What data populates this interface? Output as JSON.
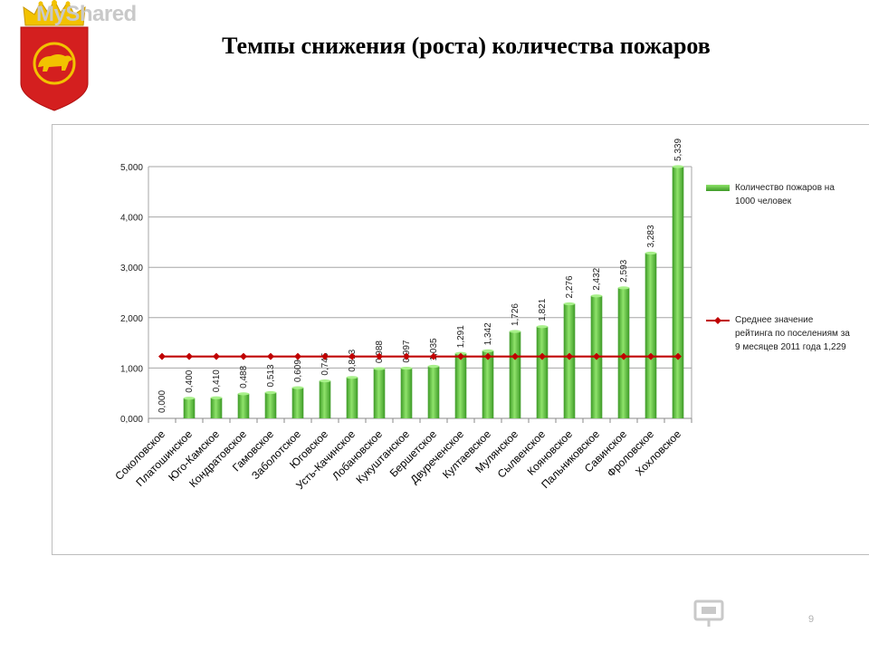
{
  "title": "Темпы снижения (роста) количества пожаров",
  "page_number": "9",
  "watermark": "MyShared",
  "colors": {
    "bar": "#5ec43f",
    "line": "#c00000",
    "grid": "#a6a6a6",
    "emblem_red": "#d41f1f",
    "emblem_gold": "#f2c200"
  },
  "icons": {
    "emblem": "coat-of-arms-bear-icon",
    "watermark": "presentation-board-icon"
  },
  "chart_data": {
    "type": "bar",
    "categories": [
      "Соколовское",
      "Платошинское",
      "Юго-Камское",
      "Кондратовское",
      "Гамовское",
      "Заболотское",
      "Юговское",
      "Усть-Качинское",
      "Лобановское",
      "Кукуштанское",
      "Бершетское",
      "Двуреченское",
      "Култаевское",
      "Мулянское",
      "Сылвенское",
      "Кояновское",
      "Пальниковское",
      "Савинское",
      "Фроловское",
      "Хохловское"
    ],
    "series": [
      {
        "name": "Количество пожаров на 1000 человек",
        "type": "bar",
        "values": [
          0.0,
          0.4,
          0.41,
          0.488,
          0.513,
          0.609,
          0.745,
          0.813,
          0.988,
          0.997,
          1.035,
          1.291,
          1.342,
          1.726,
          1.821,
          2.276,
          2.432,
          2.593,
          3.283,
          5.339
        ],
        "labels": [
          "0,000",
          "0,400",
          "0,410",
          "0,488",
          "0,513",
          "0,609",
          "0,745",
          "0,813",
          "0,988",
          "0,997",
          "1,035",
          "1,291",
          "1,342",
          "1,726",
          "1,821",
          "2,276",
          "2,432",
          "2,593",
          "3,283",
          "5,339"
        ]
      },
      {
        "name": "Среднее значение рейтинга по поселениям за 9 месяцев 2011 года 1,229",
        "type": "line",
        "value": 1.229
      }
    ],
    "legend": [
      {
        "label": "Количество пожаров на 1000 человек",
        "symbol": "bar"
      },
      {
        "label": "Среднее значение рейтинга по поселениям за 9 месяцев 2011 года 1,229",
        "symbol": "line"
      }
    ],
    "yticks": [
      0,
      1,
      2,
      3,
      4,
      5
    ],
    "ytick_labels": [
      "0,000",
      "1,000",
      "2,000",
      "3,000",
      "4,000",
      "5,000"
    ],
    "ylim": [
      0,
      5
    ],
    "grid": true,
    "legend_position": "right"
  }
}
